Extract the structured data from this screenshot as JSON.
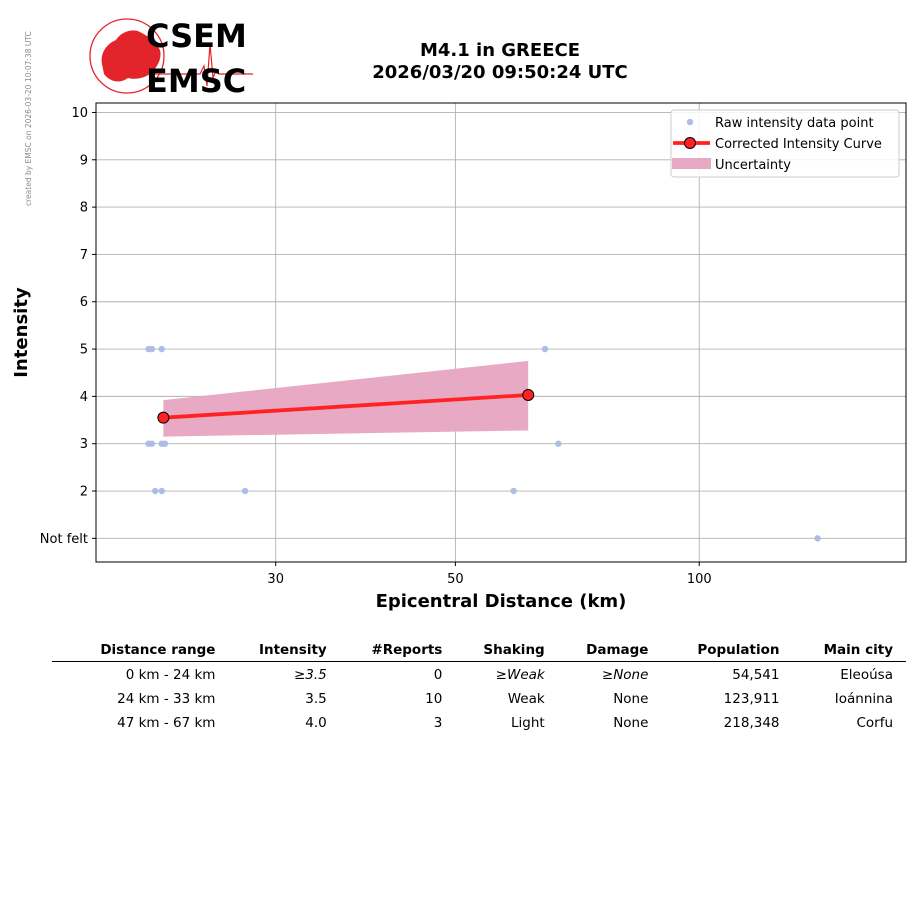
{
  "watermark": "created by EMSC on 2026-03-20 10:07:38 UTC",
  "logo": {
    "line1": "CSEM",
    "line2": "EMSC",
    "accent_color": "#e3242b",
    "text_color": "#1a0a0a"
  },
  "title": {
    "line1": "M4.1 in GREECE",
    "line2": "2026/03/20 09:50:24 UTC"
  },
  "chart_data": {
    "type": "scatter",
    "title": "M4.1 in GREECE 2026/03/20 09:50:24 UTC",
    "xlabel": "Epicentral Distance (km)",
    "ylabel": "Intensity",
    "x_scale": "log",
    "xlim": [
      18,
      180
    ],
    "ylim": [
      0.5,
      10.2
    ],
    "x_ticks": [
      30,
      50,
      100
    ],
    "y_ticks": [
      1,
      2,
      3,
      4,
      5,
      6,
      7,
      8,
      9,
      10
    ],
    "y_tick_labels": [
      "Not felt",
      "2",
      "3",
      "4",
      "5",
      "6",
      "7",
      "8",
      "9",
      "10"
    ],
    "grid": true,
    "legend_position": "top-right",
    "legend": [
      "Raw intensity data point",
      "Corrected Intensity Curve",
      "Uncertainty"
    ],
    "colors": {
      "raw": "#aebce8",
      "curve": "#ff2222",
      "uncertainty": "#e8a9c4",
      "marker_edge": "#000000"
    },
    "raw_points": [
      {
        "x": 20.9,
        "y": 5
      },
      {
        "x": 21.1,
        "y": 5
      },
      {
        "x": 21.7,
        "y": 5
      },
      {
        "x": 64.5,
        "y": 5
      },
      {
        "x": 20.9,
        "y": 3
      },
      {
        "x": 21.1,
        "y": 3
      },
      {
        "x": 21.7,
        "y": 3
      },
      {
        "x": 21.9,
        "y": 3
      },
      {
        "x": 67,
        "y": 3
      },
      {
        "x": 21.3,
        "y": 2
      },
      {
        "x": 21.7,
        "y": 2
      },
      {
        "x": 27.5,
        "y": 2
      },
      {
        "x": 59,
        "y": 2
      },
      {
        "x": 140,
        "y": 1
      }
    ],
    "curve": [
      {
        "x": 21.8,
        "y": 3.55
      },
      {
        "x": 61.5,
        "y": 4.03
      }
    ],
    "uncertainty": [
      {
        "x": 21.8,
        "low": 3.15,
        "high": 3.92
      },
      {
        "x": 61.5,
        "low": 3.28,
        "high": 4.75
      }
    ]
  },
  "table": {
    "headers": [
      "Distance range",
      "Intensity",
      "#Reports",
      "Shaking",
      "Damage",
      "Population",
      "Main city"
    ],
    "rows": [
      {
        "distance": "0 km -   24 km",
        "intensity": "≥3.5",
        "reports": "0",
        "shaking": "≥Weak",
        "damage": "≥None",
        "population": "54,541",
        "city": "Eleoúsa",
        "italic": true
      },
      {
        "distance": "24 km -   33 km",
        "intensity": "3.5",
        "reports": "10",
        "shaking": "Weak",
        "damage": "None",
        "population": "123,911",
        "city": "Ioánnina",
        "italic": false
      },
      {
        "distance": "47 km -   67 km",
        "intensity": "4.0",
        "reports": "3",
        "shaking": "Light",
        "damage": "None",
        "population": "218,348",
        "city": "Corfu",
        "italic": false
      }
    ]
  }
}
